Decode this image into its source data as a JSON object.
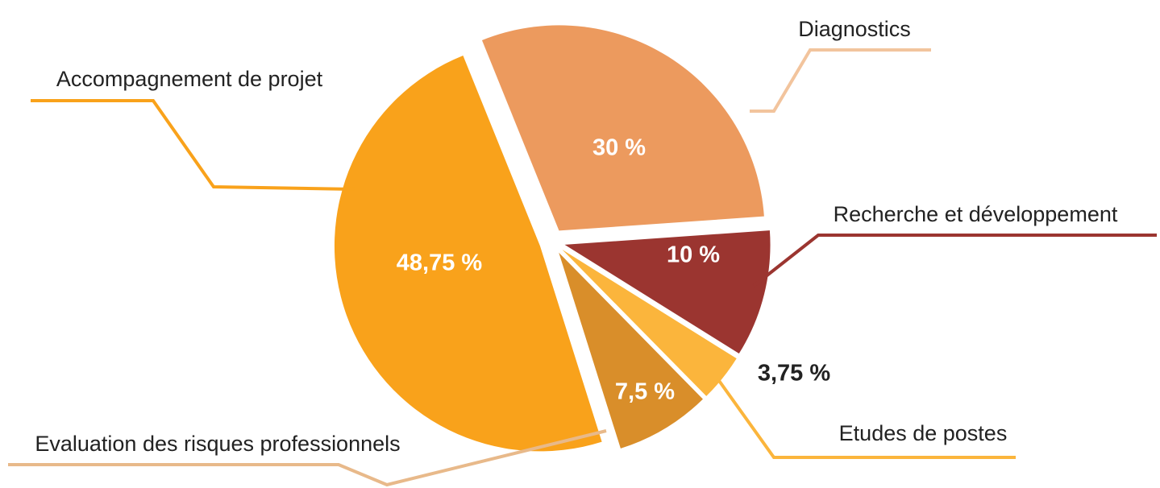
{
  "chart_data": {
    "type": "pie",
    "categories": [
      "Diagnostics",
      "Recherche et développement",
      "Etudes de postes",
      "Evaluation des risques professionnels",
      "Accompagnement de projet"
    ],
    "values": [
      30,
      10,
      3.75,
      7.5,
      48.75
    ],
    "value_labels": [
      "30 %",
      "10 %",
      "3,75 %",
      "7,5 %",
      "48,75 %"
    ],
    "colors": [
      "#ec9a5e",
      "#9b3530",
      "#fbb53c",
      "#d98e2a",
      "#f9a21b"
    ]
  }
}
